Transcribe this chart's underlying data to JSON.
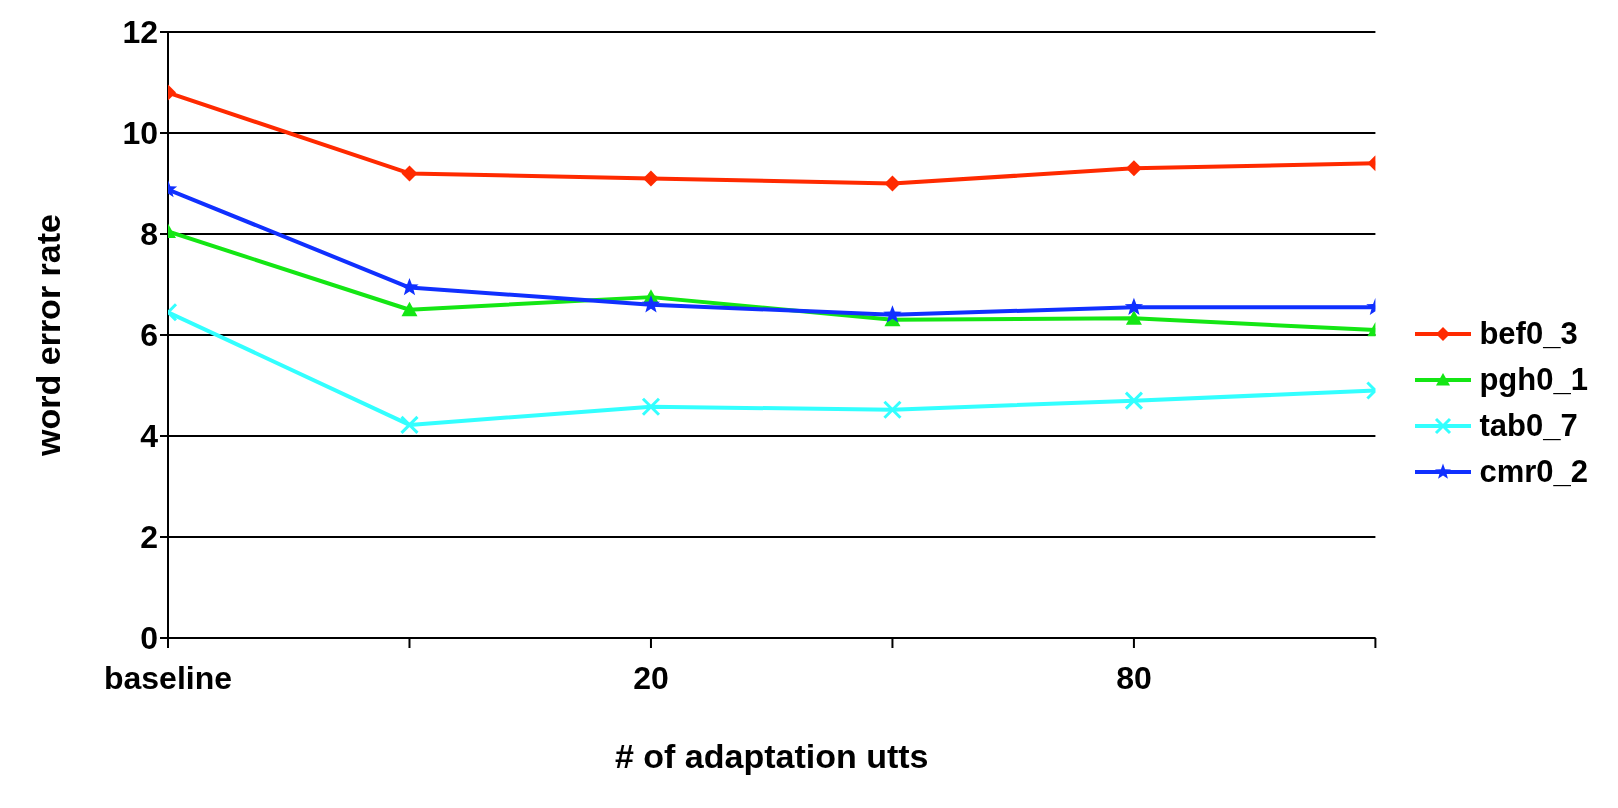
{
  "chart_data": {
    "type": "line",
    "xlabel": "# of adaptation utts",
    "ylabel": "word error rate",
    "categories": [
      "baseline",
      null,
      "20",
      null,
      "80",
      null
    ],
    "ylim": [
      0,
      12
    ],
    "yticks": [
      0,
      2,
      4,
      6,
      8,
      10,
      12
    ],
    "grid": "y",
    "legend": "right",
    "series": [
      {
        "name": "bef0_3",
        "color": "#ff2a00",
        "marker": "diamond",
        "values": [
          10.8,
          9.2,
          9.1,
          9.0,
          9.3,
          9.4
        ]
      },
      {
        "name": "pgh0_1",
        "color": "#14e614",
        "marker": "triangle",
        "values": [
          8.05,
          6.5,
          6.75,
          6.3,
          6.33,
          6.1
        ]
      },
      {
        "name": "tab0_7",
        "color": "#33ffff",
        "marker": "cross",
        "values": [
          6.45,
          4.22,
          4.58,
          4.52,
          4.7,
          4.9
        ]
      },
      {
        "name": "cmr0_2",
        "color": "#1030ff",
        "marker": "star",
        "values": [
          8.88,
          6.94,
          6.6,
          6.4,
          6.55,
          6.55
        ]
      }
    ]
  }
}
